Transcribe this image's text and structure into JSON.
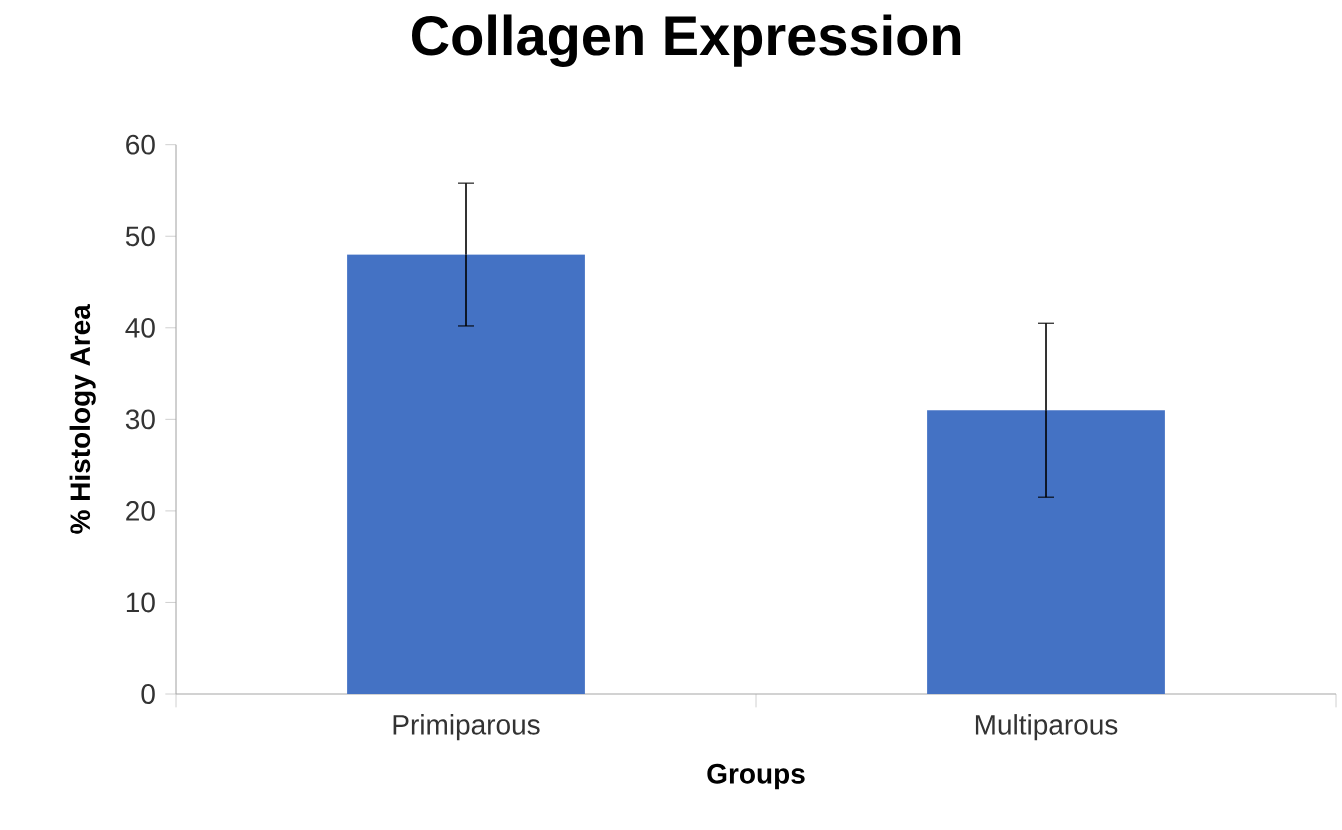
{
  "chart_data": {
    "type": "bar",
    "title": "Collagen Expression",
    "xlabel": "Groups",
    "ylabel": "% Histology Area",
    "categories": [
      "Primiparous",
      "Multiparous"
    ],
    "values": [
      48,
      31
    ],
    "errors": [
      7.8,
      9.5
    ],
    "color": "#4472c4",
    "ylim": [
      0,
      60
    ],
    "yticks": [
      0,
      10,
      20,
      30,
      40,
      50,
      60
    ]
  }
}
